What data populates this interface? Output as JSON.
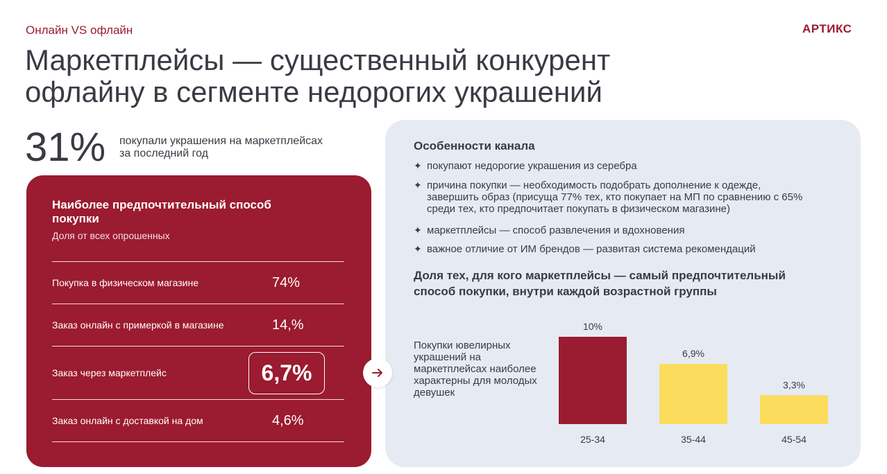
{
  "header": {
    "section_tag": "Онлайн VS офлайн",
    "brand": "АРТИКС",
    "title": "Маркетплейсы — существенный конкурент офлайну в сегменте недорогих украшений"
  },
  "stat": {
    "value": "31%",
    "description": "покупали украшения на маркетплейсах за последний год"
  },
  "preferred": {
    "title": "Наиболее предпочтительный способ покупки",
    "subtitle": "Доля от всех опрошенных",
    "rows": [
      {
        "label": "Покупка в физическом магазине",
        "value": "74%"
      },
      {
        "label": "Заказ онлайн с примеркой в магазине",
        "value": "14,%"
      },
      {
        "label": "Заказ через маркетплейс",
        "value": "6,7%"
      },
      {
        "label": "Заказ онлайн с доставкой на дом",
        "value": "4,6%"
      }
    ]
  },
  "arrow_icon": "arrow-right-icon",
  "channel": {
    "title": "Особенности канала",
    "bullet_icon": "sparkle-icon",
    "bullets": [
      "покупают недорогие украшения из серебра",
      "причина покупки — необходимость подобрать дополнение к одежде, завершить образ (присуща 77% тех, кто покупает на МП по сравнению с 65% среди тех, кто предпочитает покупать в физическом магазине)",
      "маркетплейсы — способ развлечения и вдохновения",
      "важное отличие от ИМ брендов — развитая система рекомендаций"
    ],
    "chart_title": "Доля тех, для кого маркетплейсы — самый предпочтительный способ покупки, внутри каждой возрастной группы",
    "chart_note": "Покупки ювелирных украшений на маркетплейсах наиболее характерны для молодых девушек"
  },
  "colors": {
    "brand_red": "#9b1b30",
    "panel_blue": "#e6ebf3",
    "bar_red": "#9b1b30",
    "bar_yellow": "#fcdc5c",
    "text": "#3a3a44"
  },
  "chart_data": {
    "type": "bar",
    "categories": [
      "25-34",
      "35-44",
      "45-54"
    ],
    "values": [
      10,
      6.9,
      3.3
    ],
    "value_labels": [
      "10%",
      "6,9%",
      "3,3%"
    ],
    "bar_colors": [
      "#9b1b30",
      "#fcdc5c",
      "#fcdc5c"
    ],
    "title": "Доля тех, для кого маркетплейсы — самый предпочтительный способ покупки, внутри каждой возрастной группы",
    "xlabel": "",
    "ylabel": "",
    "ylim": [
      0,
      10
    ],
    "grid": false
  }
}
